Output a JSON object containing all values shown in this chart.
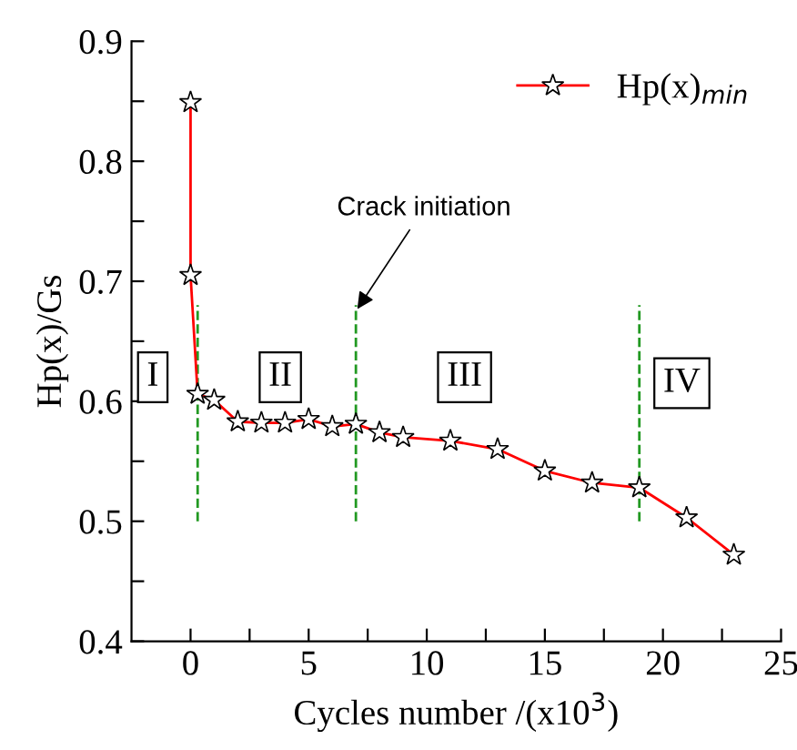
{
  "chart_data": {
    "type": "line",
    "xlabel": "Cycles number /(x10$^{3}$)",
    "ylabel": "Hp(x)/Gs",
    "x": [
      0,
      0,
      0.3,
      1,
      2,
      3,
      4,
      5,
      6,
      7,
      8,
      9,
      11,
      13,
      15,
      17,
      19,
      21,
      23
    ],
    "series": [
      {
        "name": "Hp(x)$_{min}$",
        "color": "#ff0000",
        "values": [
          0.849,
          0.705,
          0.606,
          0.601,
          0.583,
          0.582,
          0.582,
          0.585,
          0.579,
          0.581,
          0.574,
          0.57,
          0.567,
          0.56,
          0.542,
          0.532,
          0.528,
          0.503,
          0.472
        ]
      }
    ],
    "marker": "star",
    "line_style": "solid",
    "legend": "top right",
    "grid": false,
    "xlim": [
      -2.5,
      25
    ],
    "ylim": [
      0.4,
      0.9
    ],
    "xticks": [
      0,
      {
        "value": 2.5,
        "label": null
      },
      5,
      {
        "value": 7.5,
        "label": null
      },
      10,
      {
        "value": 12.5,
        "label": null
      },
      15,
      {
        "value": 17.5,
        "label": null
      },
      20,
      {
        "value": 22.5,
        "label": null
      },
      25
    ],
    "yticks": [
      0.4,
      {
        "value": 0.45,
        "label": null
      },
      0.5,
      {
        "value": 0.55,
        "label": null
      },
      0.6,
      {
        "value": 0.65,
        "label": null
      },
      0.7,
      {
        "value": 0.75,
        "label": null
      },
      0.8,
      {
        "value": 0.85,
        "label": null
      },
      0.9
    ],
    "ref_lines": [
      {
        "axis": "x",
        "value": 0.3,
        "label": null,
        "color": "#229922",
        "line_style": "dashed"
      },
      {
        "axis": "x",
        "value": 7,
        "label": null,
        "color": "#229922",
        "line_style": "dashed"
      },
      {
        "axis": "x",
        "value": 19,
        "label": null,
        "color": "#229922",
        "line_style": "dashed"
      }
    ],
    "annotations": [
      {
        "text": "I",
        "x": -1.6,
        "y": 0.62
      },
      {
        "text": "II",
        "x": 3.8,
        "y": 0.62
      },
      {
        "text": "III",
        "x": 11.6,
        "y": 0.62
      },
      {
        "text": "IV",
        "x": 20.8,
        "y": 0.615
      },
      {
        "text": "Crack initiation",
        "x": 7,
        "y": 0.675
      }
    ]
  }
}
